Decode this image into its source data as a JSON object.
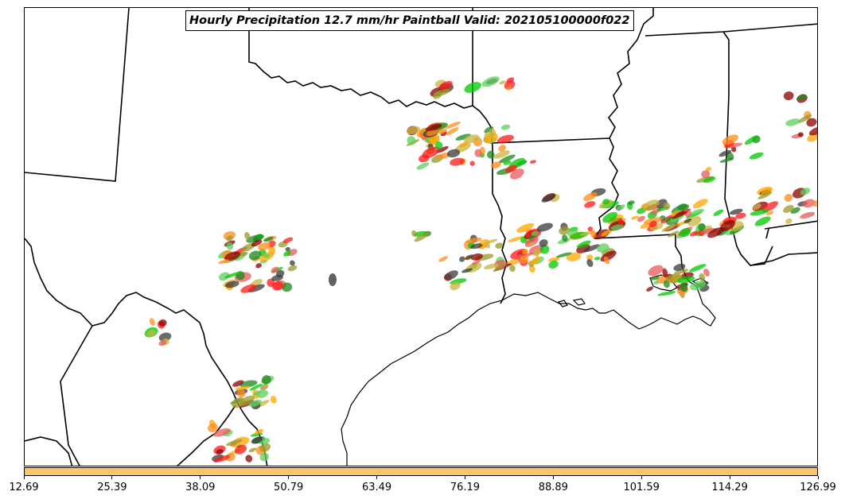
{
  "title": "Hourly Precipitation 12.7 mm/hr Paintball Valid: 202105100000f022",
  "colors": {
    "colorbar_fill": "#ffc56a",
    "members": [
      "#ff1a1a",
      "#ff8c1a",
      "#ffa500",
      "#00c800",
      "#1a8a1a",
      "#8b0000",
      "#9a9a2a",
      "#3a3a3a",
      "#c8b43c",
      "#e85a5a",
      "#5ad05a"
    ]
  },
  "map_features": [
    "state-borders",
    "coastline",
    "paintball-precip-blobs"
  ],
  "colorbar": {
    "tick_labels": [
      "12.69",
      "25.39",
      "38.09",
      "50.79",
      "63.49",
      "76.19",
      "88.89",
      "101.59",
      "114.29",
      "126.99"
    ]
  }
}
